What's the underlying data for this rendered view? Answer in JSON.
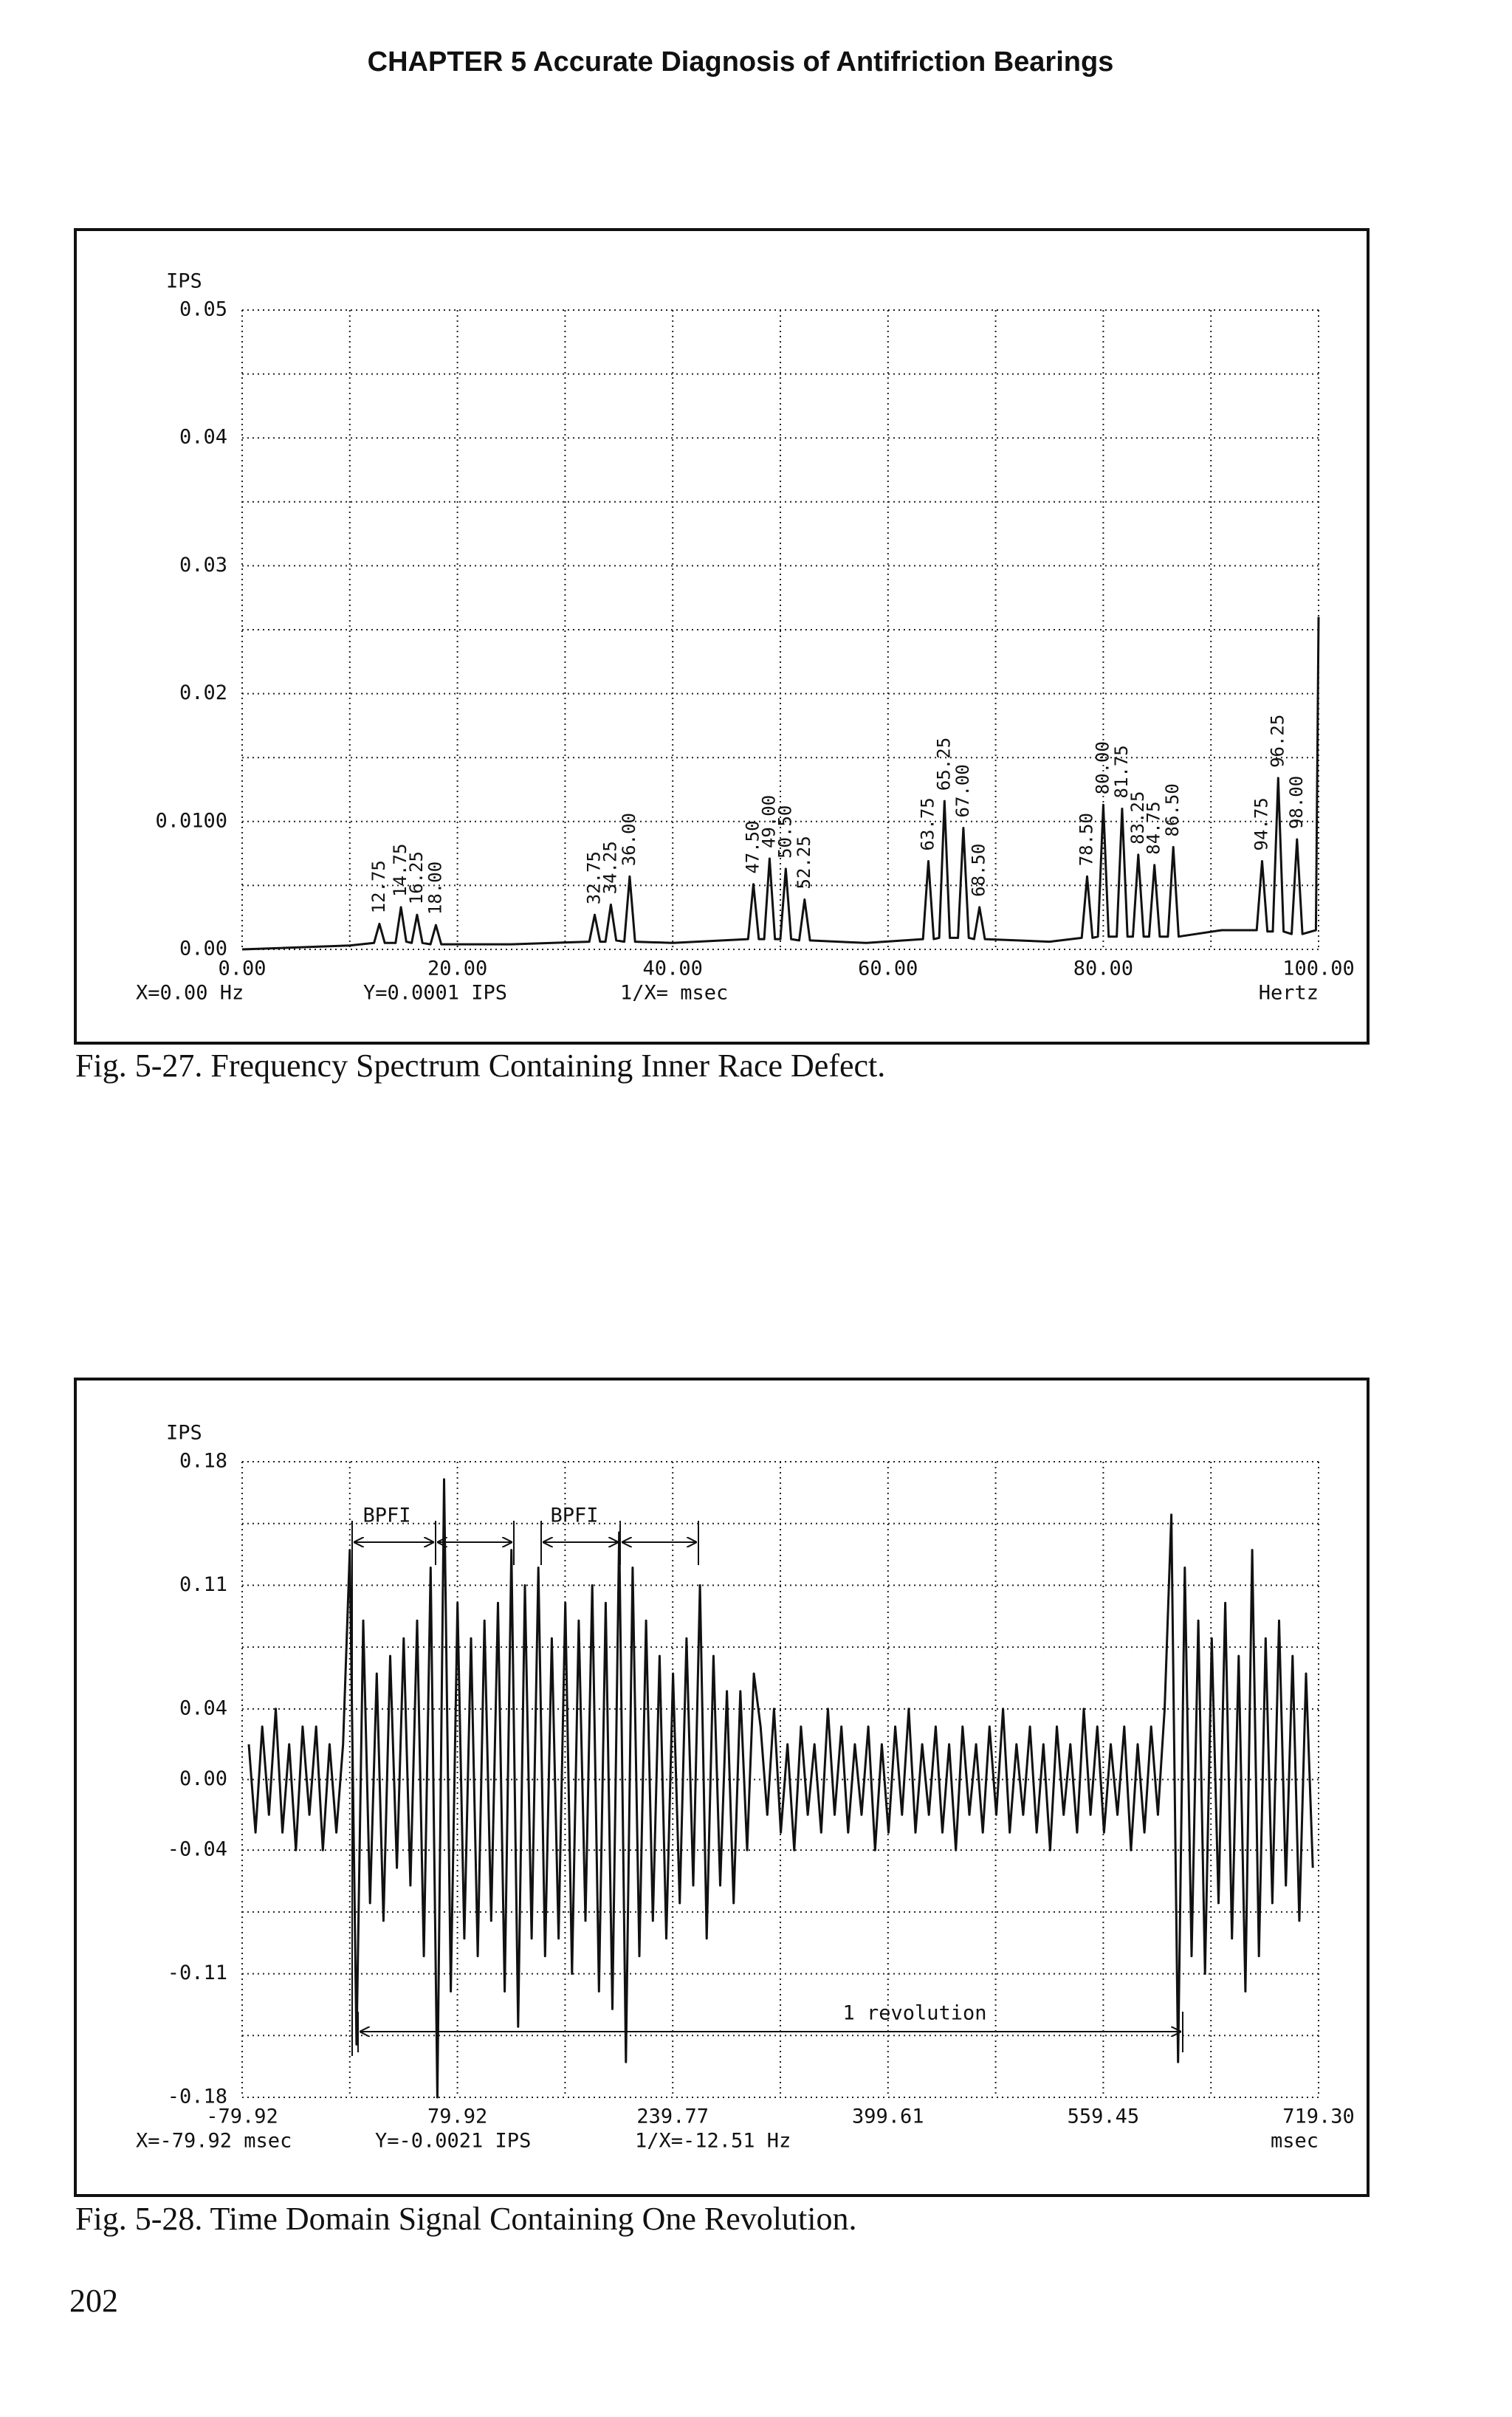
{
  "header": "CHAPTER 5 Accurate Diagnosis of Antifriction Bearings",
  "page_number": "202",
  "chart_data": [
    {
      "type": "line",
      "title": "Fig. 5-27. Frequency Spectrum Containing Inner Race Defect.",
      "ylabel": "IPS",
      "xlabel": "Hertz",
      "status": [
        "X=0.00 Hz",
        "Y=0.0001 IPS",
        "1/X= msec"
      ],
      "color": "#111",
      "xlim": [
        0,
        100
      ],
      "ylim": [
        0,
        0.05
      ],
      "xticks": [
        {
          "value": 0,
          "label": "0.00"
        },
        {
          "value": 20,
          "label": "20.00"
        },
        {
          "value": 40,
          "label": "40.00"
        },
        {
          "value": 60,
          "label": "60.00"
        },
        {
          "value": 80,
          "label": "80.00"
        },
        {
          "value": 100,
          "label": "100.00"
        }
      ],
      "yticks": [
        {
          "value": 0,
          "label": "0.00"
        },
        {
          "value": 0.01,
          "label": "0.0100"
        },
        {
          "value": 0.02,
          "label": "0.02"
        },
        {
          "value": 0.03,
          "label": "0.03"
        },
        {
          "value": 0.04,
          "label": "0.04"
        },
        0.05
      ],
      "xgrid": [
        10,
        30,
        50,
        70,
        90
      ],
      "ygrid": [
        0.005,
        0.015,
        0.025,
        0.035,
        0.045
      ],
      "x": [
        0,
        10,
        12.25,
        12.75,
        13.25,
        14.25,
        14.75,
        15.25,
        15.75,
        16.25,
        16.75,
        17.5,
        18,
        18.5,
        25,
        32.25,
        32.75,
        33.25,
        33.75,
        34.25,
        34.75,
        35.5,
        36,
        36.5,
        40,
        47,
        47.5,
        48,
        48.5,
        49,
        49.5,
        50,
        50.5,
        51,
        51.75,
        52.25,
        52.75,
        58,
        63.25,
        63.75,
        64.25,
        64.75,
        65.25,
        65.75,
        66.5,
        67,
        67.5,
        68,
        68.5,
        69,
        75,
        78,
        78.5,
        79,
        79.5,
        80,
        80.5,
        81.25,
        81.75,
        82.25,
        82.75,
        83.25,
        83.75,
        84.25,
        84.75,
        85.25,
        86,
        86.5,
        87,
        91,
        94.25,
        94.75,
        95.25,
        95.75,
        96.25,
        96.75,
        97.5,
        98,
        98.5,
        99.75,
        100
      ],
      "values": [
        0,
        0.0003,
        0.0005,
        0.002,
        0.0005,
        0.0005,
        0.0033,
        0.0006,
        0.0005,
        0.0027,
        0.0005,
        0.0004,
        0.0019,
        0.0004,
        0.0004,
        0.0006,
        0.0027,
        0.0006,
        0.0006,
        0.0035,
        0.0007,
        0.0006,
        0.0057,
        0.0006,
        0.0005,
        0.0008,
        0.0051,
        0.0008,
        0.0008,
        0.0071,
        0.0008,
        0.0008,
        0.0063,
        0.0008,
        0.0007,
        0.0039,
        0.0007,
        0.0005,
        0.0008,
        0.0069,
        0.0008,
        0.0009,
        0.0116,
        0.0009,
        0.0009,
        0.0095,
        0.0009,
        0.0008,
        0.0033,
        0.0008,
        0.0006,
        0.0009,
        0.0057,
        0.0009,
        0.001,
        0.0113,
        0.001,
        0.001,
        0.011,
        0.001,
        0.001,
        0.0074,
        0.001,
        0.001,
        0.0066,
        0.001,
        0.001,
        0.008,
        0.001,
        0.0015,
        0.0015,
        0.0069,
        0.0014,
        0.0014,
        0.0134,
        0.0014,
        0.0012,
        0.0086,
        0.0012,
        0.0015,
        0.026
      ],
      "peak_labels": [
        {
          "value": 12.75,
          "label": "12.75"
        },
        {
          "value": 14.75,
          "label": "14.75"
        },
        {
          "value": 16.25,
          "label": "16.25"
        },
        {
          "value": 18,
          "label": "18.00"
        },
        {
          "value": 32.75,
          "label": "32.75"
        },
        {
          "value": 34.25,
          "label": "34.25"
        },
        {
          "value": 36,
          "label": "36.00"
        },
        {
          "value": 47.5,
          "label": "47.50"
        },
        {
          "value": 49,
          "label": "49.00"
        },
        {
          "value": 50.5,
          "label": "50.50"
        },
        {
          "value": 52.25,
          "label": "52.25"
        },
        {
          "value": 63.75,
          "label": "63.75"
        },
        {
          "value": 65.25,
          "label": "65.25"
        },
        {
          "value": 67,
          "label": "67.00"
        },
        {
          "value": 68.5,
          "label": "68.50"
        },
        {
          "value": 78.5,
          "label": "78.50"
        },
        {
          "value": 80,
          "label": "80.00"
        },
        {
          "value": 81.75,
          "label": "81.75"
        },
        {
          "value": 83.25,
          "label": "83.25"
        },
        {
          "value": 84.75,
          "label": "84.75"
        },
        {
          "value": 86.5,
          "label": "86.50"
        },
        {
          "value": 94.75,
          "label": "94.75"
        },
        {
          "value": 96.25,
          "label": "96.25"
        },
        {
          "value": 98,
          "label": "98.00"
        }
      ]
    },
    {
      "type": "line",
      "title": "Fig. 5-28. Time Domain Signal Containing One Revolution.",
      "ylabel": "IPS",
      "xlabel": "msec",
      "status": [
        "X=-79.92 msec",
        "Y=-0.0021 IPS",
        "1/X=-12.51 Hz"
      ],
      "annotations": [
        "BPFI",
        "BPFI",
        "1 revolution"
      ],
      "color": "#111",
      "xlim": [
        -79.92,
        719.3
      ],
      "ylim": [
        -0.18,
        0.18
      ],
      "xticks": [
        -79.92,
        79.92,
        239.77,
        399.61,
        559.45,
        {
          "value": 719.3,
          "label": "719.30"
        }
      ],
      "yticks": [
        {
          "value": -0.18,
          "label": "-0.18"
        },
        {
          "value": -0.11,
          "label": "-0.11"
        },
        {
          "value": -0.04,
          "label": "-0.04"
        },
        {
          "value": 0,
          "label": "0.00"
        },
        {
          "value": 0.04,
          "label": "0.04"
        },
        {
          "value": 0.11,
          "label": "0.11"
        },
        {
          "value": 0.18,
          "label": "0.18"
        }
      ],
      "xgrid": [
        0,
        159.84,
        319.69,
        479.53,
        639.38
      ],
      "ygrid": [
        0.145,
        0.075,
        -0.075,
        -0.145
      ],
      "x": [
        -75,
        -70,
        -65,
        -60,
        -55,
        -50,
        -45,
        -40,
        -35,
        -30,
        -25,
        -20,
        -15,
        -10,
        -5,
        0,
        5,
        10,
        15,
        20,
        25,
        30,
        35,
        40,
        45,
        50,
        55,
        60,
        65,
        70,
        75,
        80,
        85,
        90,
        95,
        100,
        105,
        110,
        115,
        120,
        125,
        130,
        135,
        140,
        145,
        150,
        155,
        160,
        165,
        170,
        175,
        180,
        185,
        190,
        195,
        200,
        205,
        210,
        215,
        220,
        225,
        230,
        235,
        240,
        245,
        250,
        255,
        260,
        265,
        270,
        275,
        280,
        285,
        290,
        295,
        300,
        305,
        310,
        315,
        320,
        325,
        330,
        335,
        340,
        345,
        350,
        355,
        360,
        365,
        370,
        375,
        380,
        385,
        390,
        395,
        400,
        405,
        410,
        415,
        420,
        425,
        430,
        435,
        440,
        445,
        450,
        455,
        460,
        465,
        470,
        475,
        480,
        485,
        490,
        495,
        500,
        505,
        510,
        515,
        520,
        525,
        530,
        535,
        540,
        545,
        550,
        555,
        560,
        565,
        570,
        575,
        580,
        585,
        590,
        595,
        600,
        605,
        610,
        615,
        620,
        625,
        630,
        635,
        640,
        645,
        650,
        655,
        660,
        665,
        670,
        675,
        680,
        685,
        690,
        695,
        700,
        705,
        710,
        715
      ],
      "values": [
        0.02,
        -0.03,
        0.03,
        -0.02,
        0.04,
        -0.03,
        0.02,
        -0.04,
        0.03,
        -0.02,
        0.03,
        -0.04,
        0.02,
        -0.03,
        0.02,
        0.13,
        -0.15,
        0.09,
        -0.07,
        0.06,
        -0.08,
        0.07,
        -0.05,
        0.08,
        -0.06,
        0.09,
        -0.1,
        0.12,
        -0.18,
        0.17,
        -0.12,
        0.1,
        -0.09,
        0.08,
        -0.1,
        0.09,
        -0.08,
        0.1,
        -0.12,
        0.13,
        -0.14,
        0.11,
        -0.09,
        0.12,
        -0.1,
        0.08,
        -0.09,
        0.1,
        -0.11,
        0.09,
        -0.08,
        0.11,
        -0.12,
        0.1,
        -0.13,
        0.14,
        -0.16,
        0.12,
        -0.1,
        0.09,
        -0.08,
        0.07,
        -0.09,
        0.06,
        -0.07,
        0.08,
        -0.06,
        0.11,
        -0.09,
        0.07,
        -0.06,
        0.05,
        -0.07,
        0.05,
        -0.04,
        0.06,
        0.03,
        -0.02,
        0.04,
        -0.03,
        0.02,
        -0.04,
        0.03,
        -0.02,
        0.02,
        -0.03,
        0.04,
        -0.02,
        0.03,
        -0.03,
        0.02,
        -0.02,
        0.03,
        -0.04,
        0.02,
        -0.03,
        0.03,
        -0.02,
        0.04,
        -0.03,
        0.02,
        -0.02,
        0.03,
        -0.03,
        0.02,
        -0.04,
        0.03,
        -0.02,
        0.02,
        -0.03,
        0.03,
        -0.02,
        0.04,
        -0.03,
        0.02,
        -0.02,
        0.03,
        -0.03,
        0.02,
        -0.04,
        0.03,
        -0.02,
        0.02,
        -0.03,
        0.04,
        -0.02,
        0.03,
        -0.03,
        0.02,
        -0.02,
        0.03,
        -0.04,
        0.02,
        -0.03,
        0.03,
        -0.02,
        0.04,
        0.15,
        -0.16,
        0.12,
        -0.1,
        0.09,
        -0.11,
        0.08,
        -0.07,
        0.1,
        -0.09,
        0.07,
        -0.12,
        0.13,
        -0.1,
        0.08,
        -0.07,
        0.09,
        -0.06,
        0.07,
        -0.08,
        0.06,
        -0.05
      ]
    }
  ]
}
